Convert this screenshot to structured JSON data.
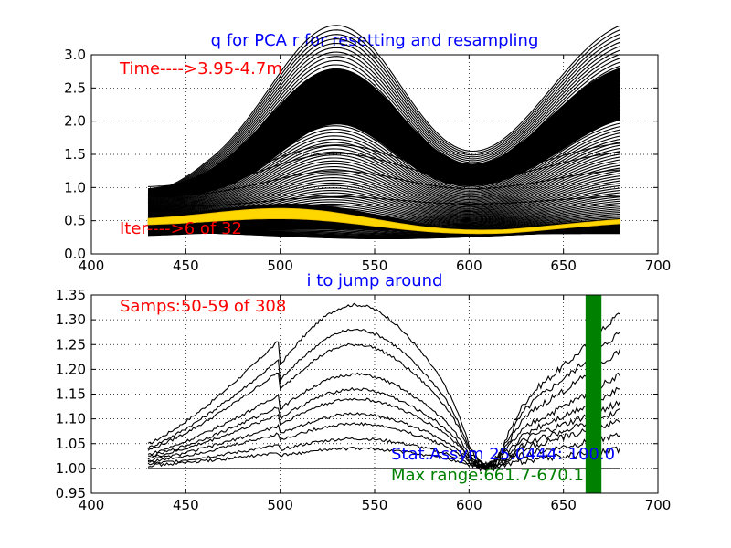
{
  "chart_data": [
    {
      "type": "line",
      "title": "q for PCA r for resetting and resampling",
      "xlim": [
        400,
        700
      ],
      "ylim": [
        0.0,
        3.0
      ],
      "xticks": [
        "400",
        "450",
        "500",
        "550",
        "600",
        "650",
        "700"
      ],
      "yticks": [
        "0.0",
        "0.5",
        "1.0",
        "1.5",
        "2.0",
        "2.5",
        "3.0"
      ],
      "grid": true,
      "x_range_data": [
        430,
        680
      ],
      "annotations": [
        {
          "text": "Time---->3.95-4.7m",
          "color": "#ff0000"
        },
        {
          "text": "Iter---->6 of 32",
          "color": "#ff0000"
        }
      ],
      "series": [
        {
          "peak_at_530": 2.77,
          "value_at_430": 1.0,
          "value_at_680": 2.82,
          "color": "#000000"
        },
        {
          "peak_at_530": 0.5,
          "value_at_430": 0.75,
          "value_at_680": 0.3,
          "color": "#ffd700"
        }
      ]
    },
    {
      "type": "line",
      "title": "i to jump around",
      "xlim": [
        400,
        700
      ],
      "ylim": [
        0.95,
        1.35
      ],
      "xticks": [
        "400",
        "450",
        "500",
        "550",
        "600",
        "650",
        "700"
      ],
      "yticks": [
        "0.95",
        "1.00",
        "1.05",
        "1.10",
        "1.15",
        "1.20",
        "1.25",
        "1.30",
        "1.35"
      ],
      "grid": true,
      "x_range_data": [
        430,
        680
      ],
      "series_peaks_at_540": [
        1.33,
        1.28,
        1.25,
        1.19,
        1.16,
        1.14,
        1.11,
        1.09,
        1.06,
        1.04
      ],
      "series_end_values_at_680": [
        1.33,
        1.29,
        1.25,
        1.2,
        1.17,
        1.14,
        1.12,
        1.1,
        1.07,
        1.04
      ],
      "highlight_band": {
        "x": [
          661.7,
          670.1
        ],
        "color": "#008000"
      },
      "annotations": [
        {
          "text": "Samps:50-59  of  308",
          "color": "#ff0000"
        },
        {
          "text": "Stat.Assym 25.0444: 100.0",
          "color": "#0000ff"
        },
        {
          "text": "Max range:661.7-670.1",
          "color": "#008000"
        }
      ]
    }
  ]
}
